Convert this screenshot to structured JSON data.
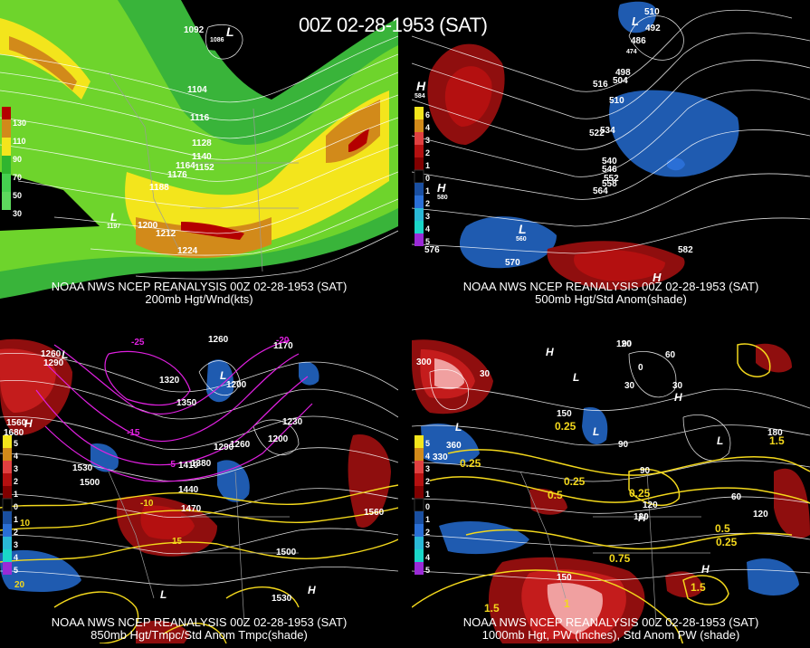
{
  "title": "00Z 02-28-1953 (SAT)",
  "panels": [
    {
      "caption_line1": "NOAA NWS NCEP REANALYSIS 00Z 02-28-1953 (SAT)",
      "caption_line2": "200mb Hgt/Wnd(kts)",
      "legend": [
        "130",
        "110",
        "90",
        "70",
        "50",
        "30"
      ],
      "legend_colors": [
        "#b40000",
        "#d28a1a",
        "#f3e51c",
        "#2fb52f",
        "#45d04f",
        "#5dd85d"
      ],
      "contour_labels": [
        "1092",
        "1104",
        "1116",
        "1128",
        "1140",
        "1152",
        "1164",
        "1176",
        "1188",
        "1200",
        "1212",
        "1224",
        "1197",
        "1086"
      ],
      "lows": [
        "L",
        "L"
      ]
    },
    {
      "caption_line1": "NOAA NWS NCEP REANALYSIS 00Z 02-28-1953 (SAT)",
      "caption_line2": "500mb Hgt/Std Anom(shade)",
      "legend": [
        "6",
        "4",
        "3",
        "2",
        "1",
        "0",
        "1",
        "2",
        "3",
        "4",
        "5"
      ],
      "legend_colors": [
        "#f3e51c",
        "#d28a1a",
        "#e04040",
        "#b41010",
        "#800000",
        "#000000",
        "#1a4fa0",
        "#2a6fd6",
        "#2ab8d6",
        "#1ad6c8",
        "#9a2ad6"
      ],
      "contour_labels": [
        "510",
        "492",
        "486",
        "474",
        "498",
        "504",
        "516",
        "510",
        "522",
        "534",
        "540",
        "546",
        "552",
        "558",
        "564",
        "570",
        "576",
        "582",
        "584",
        "580",
        "560"
      ],
      "highs": [
        "H",
        "H",
        "H"
      ],
      "lows": [
        "L",
        "L"
      ]
    },
    {
      "caption_line1": "NOAA NWS NCEP REANALYSIS 00Z 02-28-1953 (SAT)",
      "caption_line2": "850mb Hgt/Tmpc/Std Anom Tmpc(shade)",
      "legend": [
        "5",
        "4",
        "3",
        "2",
        "1",
        "0",
        "1",
        "2",
        "3",
        "4",
        "5"
      ],
      "legend_colors": [
        "#f3e51c",
        "#d28a1a",
        "#e04040",
        "#b41010",
        "#800000",
        "#000000",
        "#1a4fa0",
        "#2a6fd6",
        "#2ab8d6",
        "#1ad6c8",
        "#9a2ad6"
      ],
      "contour_labels": [
        "1260",
        "1290",
        "1320",
        "1350",
        "1260",
        "1200",
        "1170",
        "1230",
        "1200",
        "1290",
        "1260",
        "1410",
        "1380",
        "1530",
        "1500",
        "1440",
        "1470",
        "1500",
        "1560",
        "1530",
        "1560",
        "1680",
        "-25",
        "-20",
        "-15",
        "-10",
        "-5",
        "10",
        "15",
        "20"
      ],
      "highs": [
        "H",
        "H"
      ],
      "lows": [
        "L",
        "L",
        "L"
      ]
    },
    {
      "caption_line1": "NOAA NWS NCEP REANALYSIS 00Z 02-28-1953 (SAT)",
      "caption_line2": "1000mb Hgt, PW (inches), Std Anom PW (shade)",
      "legend": [
        "5",
        "4",
        "3",
        "2",
        "1",
        "0",
        "1",
        "2",
        "3",
        "4",
        "5"
      ],
      "legend_colors": [
        "#f3e51c",
        "#d28a1a",
        "#e04040",
        "#b41010",
        "#800000",
        "#000000",
        "#1a4fa0",
        "#2a6fd6",
        "#2ab8d6",
        "#1ad6c8",
        "#9a2ad6"
      ],
      "contour_labels": [
        "90",
        "120",
        "30",
        "60",
        "0",
        "30",
        "120",
        "150",
        "90",
        "360",
        "330",
        "300",
        "90",
        "120",
        "150",
        "180",
        "60",
        "120",
        "30",
        "0.25",
        "0.25",
        "0.5",
        "0.25",
        "0.25",
        "0.5",
        "0.75",
        "0.25",
        "1.5",
        "1.5",
        "1.5",
        "1"
      ],
      "highs": [
        "H",
        "H",
        "H",
        "H"
      ],
      "lows": [
        "L",
        "L",
        "L",
        "L"
      ]
    }
  ]
}
